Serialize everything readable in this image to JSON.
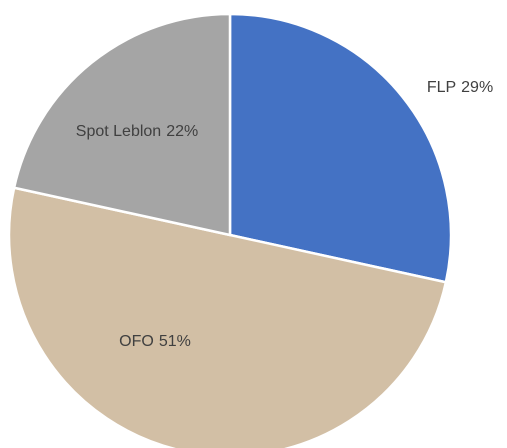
{
  "chart_data": {
    "type": "pie",
    "categories": [
      "FLP",
      "OFO",
      "Spot Leblon"
    ],
    "values": [
      29,
      51,
      22
    ],
    "value_labels": [
      "29%",
      "51%",
      "22%"
    ],
    "colors": [
      "#4472c4",
      "#d2bfa5",
      "#a5a5a5"
    ]
  }
}
